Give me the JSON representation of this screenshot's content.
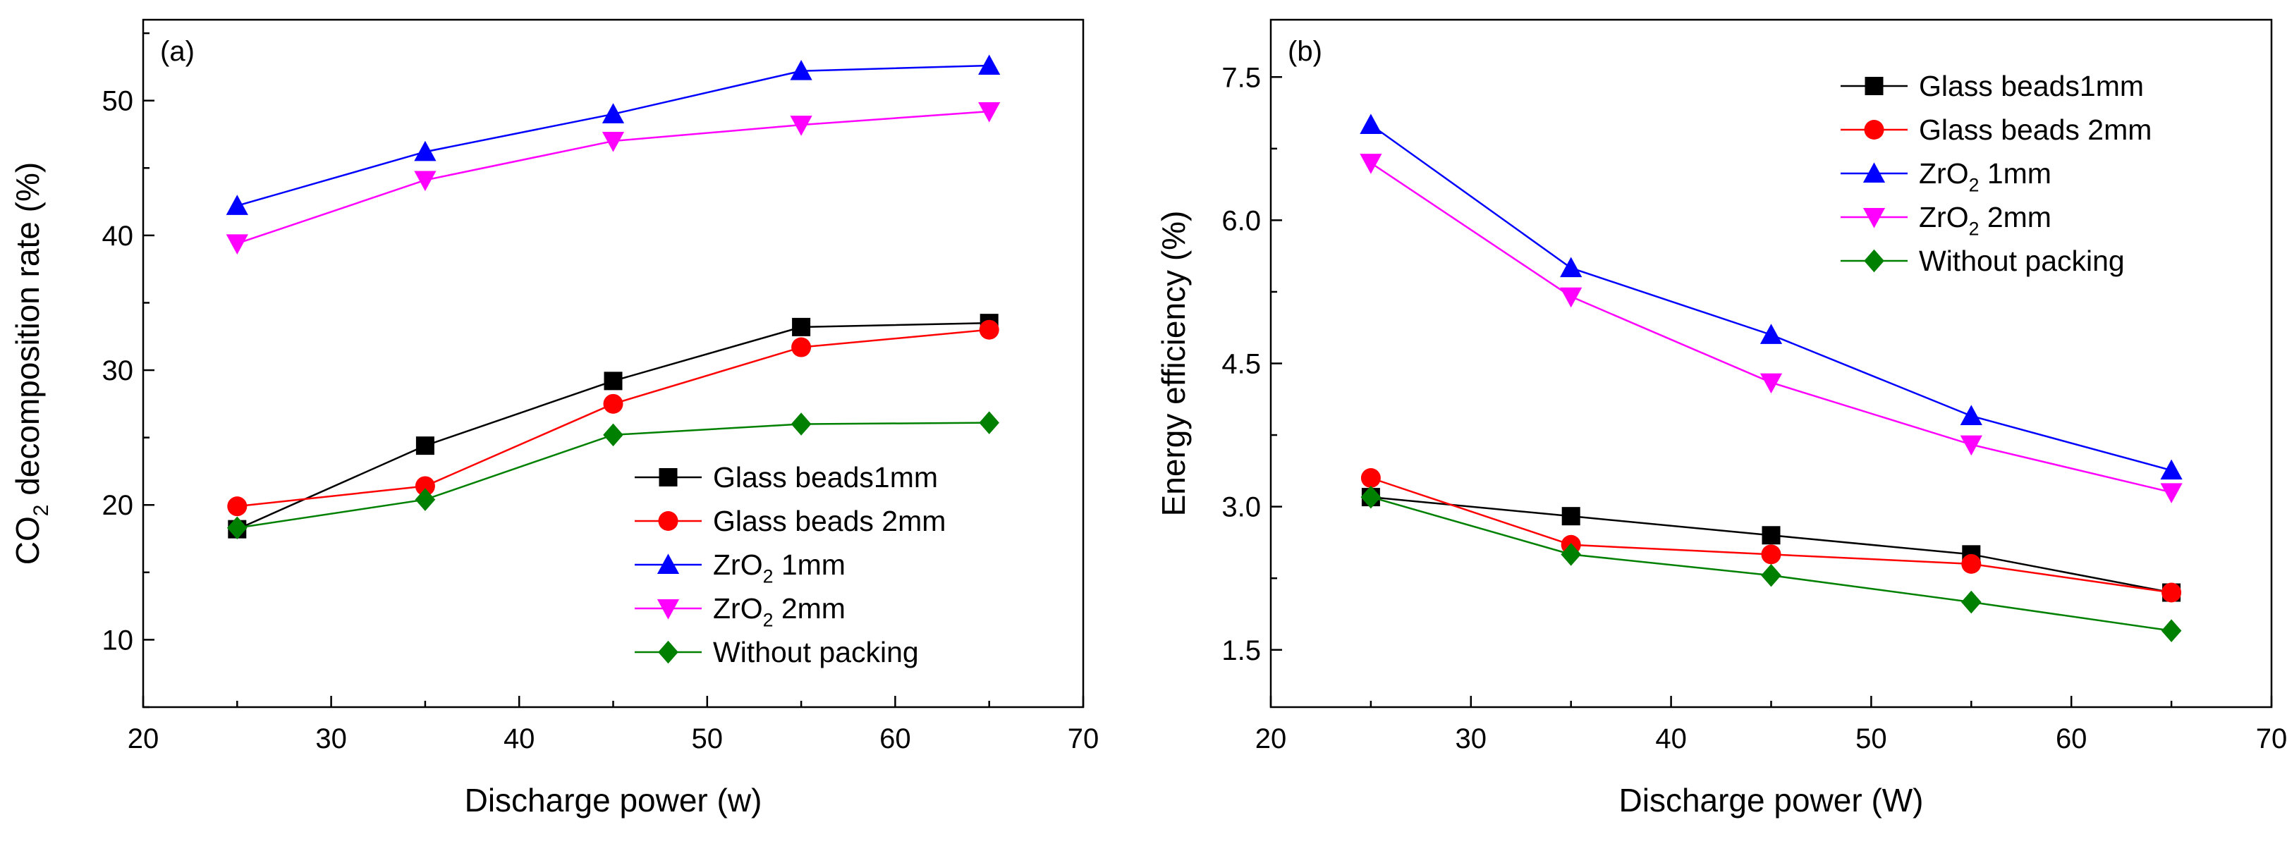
{
  "chart_data": [
    {
      "type": "line",
      "panel_label": "(a)",
      "title": "",
      "xlabel": "Discharge power (w)",
      "ylabel_main": "CO",
      "ylabel_sub": "2",
      "ylabel_rest": " decomposition rate (%)",
      "xlim": [
        20,
        70
      ],
      "ylim": [
        5,
        56
      ],
      "xticks": [
        20,
        30,
        40,
        50,
        60,
        70
      ],
      "yticks": [
        10,
        20,
        30,
        40,
        50
      ],
      "grid": false,
      "legend_position": "bottom-right",
      "x": [
        25,
        35,
        45,
        55,
        65
      ],
      "series": [
        {
          "name": "Glass beads1mm",
          "name_main": "Glass beads1mm",
          "name_sub": "",
          "name_rest": "",
          "color": "#000000",
          "marker": "square",
          "values": [
            18.2,
            24.4,
            29.2,
            33.2,
            33.5
          ]
        },
        {
          "name": "Glass beads 2mm",
          "name_main": "Glass beads 2mm",
          "name_sub": "",
          "name_rest": "",
          "color": "#ff0000",
          "marker": "circle",
          "values": [
            19.9,
            21.4,
            27.5,
            31.7,
            33.0
          ]
        },
        {
          "name": "ZrO2 1mm",
          "name_main": "ZrO",
          "name_sub": "2",
          "name_rest": " 1mm",
          "color": "#0000ff",
          "marker": "triangle-up",
          "values": [
            42.2,
            46.2,
            49.0,
            52.2,
            52.6
          ]
        },
        {
          "name": "ZrO2  2mm",
          "name_main": "ZrO",
          "name_sub": "2",
          "name_rest": "  2mm",
          "color": "#ff00ff",
          "marker": "triangle-down",
          "values": [
            39.4,
            44.1,
            47.0,
            48.2,
            49.2
          ]
        },
        {
          "name": "Without packing",
          "name_main": "Without packing",
          "name_sub": "",
          "name_rest": "",
          "color": "#008000",
          "marker": "diamond",
          "values": [
            18.3,
            20.4,
            25.2,
            26.0,
            26.1
          ]
        }
      ]
    },
    {
      "type": "line",
      "panel_label": "(b)",
      "title": "",
      "xlabel": "Discharge power (W)",
      "ylabel_main": "Energy efficiency (%)",
      "ylabel_sub": "",
      "ylabel_rest": "",
      "xlim": [
        20,
        70
      ],
      "ylim": [
        0.9,
        8.1
      ],
      "xticks": [
        20,
        30,
        40,
        50,
        60,
        70
      ],
      "yticks": [
        1.5,
        3.0,
        4.5,
        6.0,
        7.5
      ],
      "ytick_labels": [
        "1.5",
        "3.0",
        "4.5",
        "6.0",
        "7.5"
      ],
      "grid": false,
      "legend_position": "top-right",
      "x": [
        25,
        35,
        45,
        55,
        65
      ],
      "series": [
        {
          "name": "Glass beads1mm",
          "name_main": "Glass beads1mm",
          "name_sub": "",
          "name_rest": "",
          "color": "#000000",
          "marker": "square",
          "values": [
            3.1,
            2.9,
            2.7,
            2.5,
            2.1
          ]
        },
        {
          "name": "Glass beads 2mm",
          "name_main": "Glass beads 2mm",
          "name_sub": "",
          "name_rest": "",
          "color": "#ff0000",
          "marker": "circle",
          "values": [
            3.3,
            2.6,
            2.5,
            2.4,
            2.1
          ]
        },
        {
          "name": "ZrO2 1mm",
          "name_main": "ZrO",
          "name_sub": "2",
          "name_rest": " 1mm",
          "color": "#0000ff",
          "marker": "triangle-up",
          "values": [
            7.0,
            5.5,
            4.8,
            3.95,
            3.38
          ]
        },
        {
          "name": "ZrO2  2mm",
          "name_main": "ZrO",
          "name_sub": "2",
          "name_rest": "  2mm",
          "color": "#ff00ff",
          "marker": "triangle-down",
          "values": [
            6.6,
            5.2,
            4.3,
            3.65,
            3.15
          ]
        },
        {
          "name": "Without packing",
          "name_main": "Without packing",
          "name_sub": "",
          "name_rest": "",
          "color": "#008000",
          "marker": "diamond",
          "values": [
            3.1,
            2.5,
            2.28,
            2.0,
            1.7
          ]
        }
      ]
    }
  ]
}
